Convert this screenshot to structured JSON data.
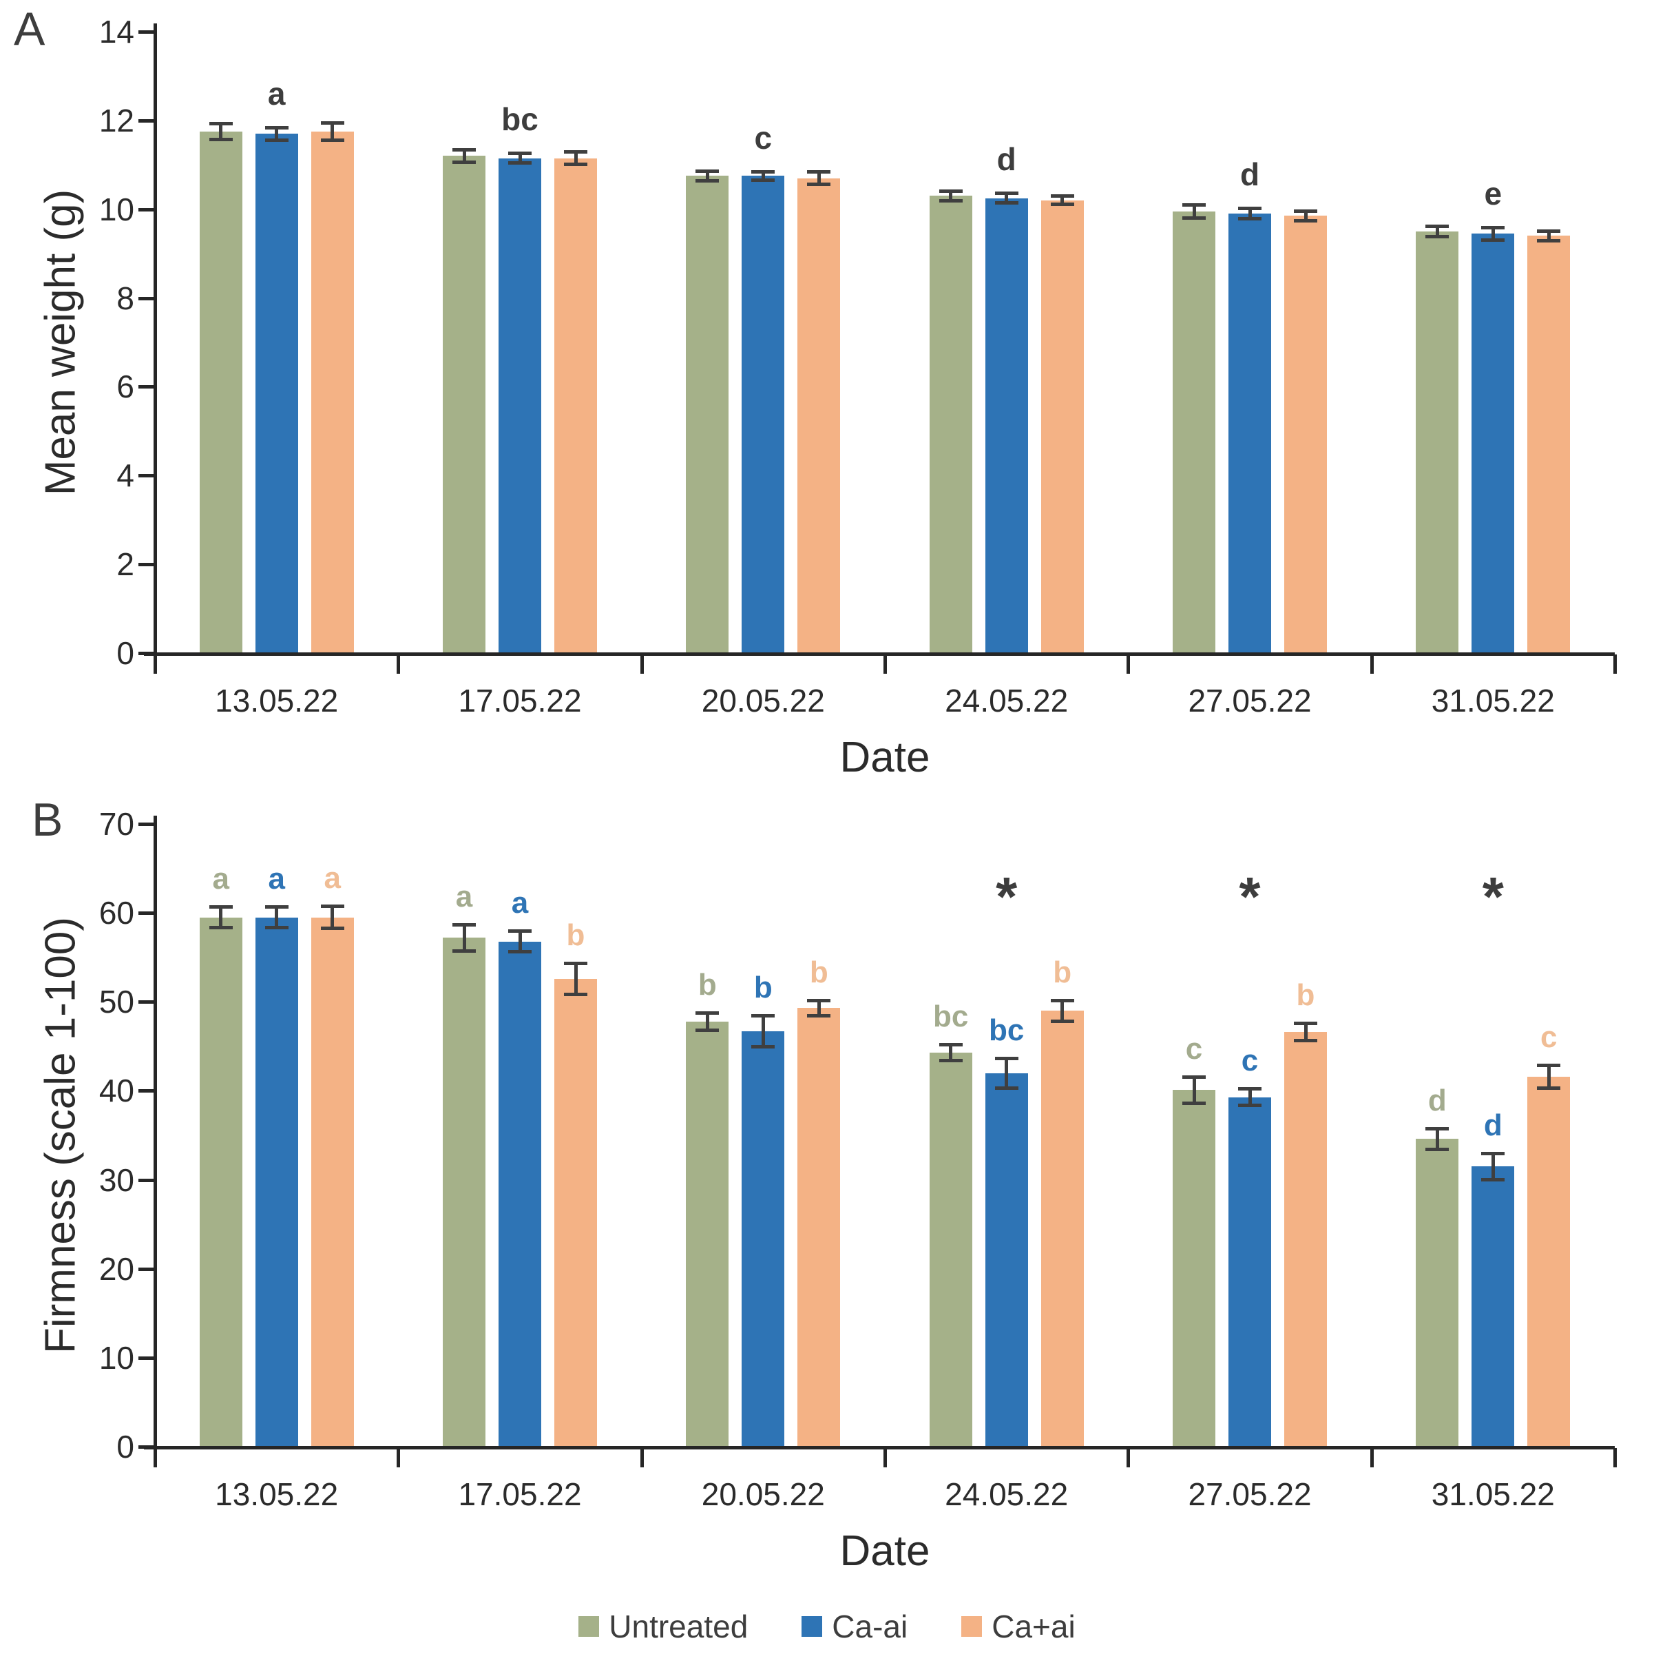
{
  "figure": {
    "background": "#ffffff"
  },
  "chart_data": [
    {
      "type": "bar",
      "panel_label": "A",
      "xlabel": "Date",
      "ylabel": "Mean weight (g)",
      "ylim": [
        0,
        14
      ],
      "ytick_step": 2,
      "grid": false,
      "categories": [
        "13.05.22",
        "17.05.22",
        "20.05.22",
        "24.05.22",
        "27.05.22",
        "31.05.22"
      ],
      "series": [
        {
          "name": "Untreated",
          "color": "#a5b189",
          "values": [
            11.75,
            11.2,
            10.75,
            10.3,
            9.95,
            9.5
          ],
          "errors": [
            0.18,
            0.15,
            0.12,
            0.12,
            0.15,
            0.12
          ]
        },
        {
          "name": "Ca-ai",
          "color": "#2e74b5",
          "values": [
            11.7,
            11.15,
            10.75,
            10.25,
            9.9,
            9.45
          ],
          "errors": [
            0.15,
            0.12,
            0.1,
            0.12,
            0.12,
            0.15
          ]
        },
        {
          "name": "Ca+ai",
          "color": "#f4b285",
          "values": [
            11.75,
            11.15,
            10.7,
            10.2,
            9.85,
            9.4
          ],
          "errors": [
            0.2,
            0.15,
            0.15,
            0.1,
            0.12,
            0.12
          ]
        }
      ],
      "group_letters": [
        "a",
        "bc",
        "c",
        "d",
        "d",
        "e"
      ],
      "annotation_color": "#3d3d3d"
    },
    {
      "type": "bar",
      "panel_label": "B",
      "xlabel": "Date",
      "ylabel": "Firmness (scale 1-100)",
      "ylim": [
        0,
        70
      ],
      "ytick_step": 10,
      "grid": false,
      "categories": [
        "13.05.22",
        "17.05.22",
        "20.05.22",
        "24.05.22",
        "27.05.22",
        "31.05.22"
      ],
      "series": [
        {
          "name": "Untreated",
          "color": "#a5b189",
          "values": [
            59.5,
            57.2,
            47.8,
            44.3,
            40.1,
            34.6
          ],
          "errors": [
            1.2,
            1.5,
            1.0,
            0.9,
            1.5,
            1.2
          ],
          "letters": [
            "a",
            "a",
            "b",
            "bc",
            "c",
            "d"
          ],
          "letter_color": "#a3ab8e"
        },
        {
          "name": "Ca-ai",
          "color": "#2e74b5",
          "values": [
            59.5,
            56.8,
            46.7,
            42.0,
            39.3,
            31.5
          ],
          "errors": [
            1.2,
            1.2,
            1.8,
            1.7,
            1.0,
            1.5
          ],
          "letters": [
            "a",
            "a",
            "b",
            "bc",
            "c",
            "d"
          ],
          "letter_color": "#2e74b5"
        },
        {
          "name": "Ca+ai",
          "color": "#f4b285",
          "values": [
            59.5,
            52.6,
            49.3,
            49.0,
            46.6,
            41.6
          ],
          "errors": [
            1.3,
            1.8,
            0.9,
            1.2,
            1.0,
            1.3
          ],
          "letters": [
            "a",
            "b",
            "b",
            "b",
            "b",
            "c"
          ],
          "letter_color": "#f0bd95"
        }
      ],
      "asterisk_groups": [
        3,
        4,
        5
      ],
      "asterisk_symbol": "*",
      "annotation_color": "#3d3d3d"
    }
  ],
  "legend": {
    "items": [
      {
        "label": "Untreated",
        "color": "#a5b189"
      },
      {
        "label": "Ca-ai",
        "color": "#2e74b5"
      },
      {
        "label": "Ca+ai",
        "color": "#f4b285"
      }
    ]
  },
  "axis": {
    "line_color": "#262626",
    "text_color": "#2b2b2b",
    "error_bar_color": "#3f3f3f"
  }
}
